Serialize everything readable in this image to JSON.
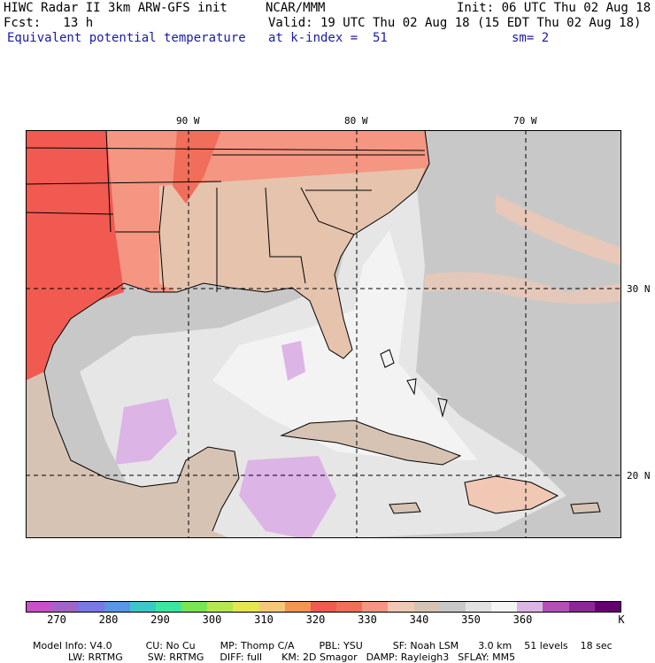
{
  "header": {
    "title": "HIWC Radar II 3km ARW-GFS init",
    "org": "NCAR/MMM",
    "init": "Init: 06 UTC Thu 02 Aug 18",
    "fcst": "Fcst:   13 h",
    "valid": "Valid: 19 UTC Thu 02 Aug 18 (15 EDT Thu 02 Aug 18)",
    "field": "Equivalent potential temperature",
    "level": "at k-index =  51",
    "smooth": "sm= 2"
  },
  "map": {
    "lon_labels": [
      "90 W",
      "80 W",
      "70 W"
    ],
    "lat_labels": [
      "30 N",
      "20 N"
    ]
  },
  "colorbar": {
    "colors": [
      "#c850c8",
      "#a064c8",
      "#7878e6",
      "#5a96e6",
      "#3cc8c8",
      "#3ce6a0",
      "#78e650",
      "#b4e650",
      "#e6e650",
      "#f5c878",
      "#f59650",
      "#f05a50",
      "#f06e5a",
      "#f59682",
      "#f0c8b4",
      "#d7c3b4",
      "#c8c8c8",
      "#e1e1e1",
      "#f5f5f5",
      "#dcb4e6",
      "#b450b4",
      "#8c2896",
      "#64006e"
    ],
    "labels": [
      "270",
      "280",
      "290",
      "300",
      "310",
      "320",
      "330",
      "340",
      "350",
      "360",
      "K"
    ]
  },
  "footer": {
    "line1": [
      "Model Info: V4.0",
      "CU: No Cu",
      "MP: Thomp C/A",
      "PBL: YSU",
      "SF: Noah LSM",
      "3.0 km",
      "51 levels",
      "18 sec"
    ],
    "line2": [
      "LW: RRTMG",
      "SW: RRTMG",
      "DIFF: full",
      "KM: 2D Smagor",
      "DAMP: Rayleigh3",
      "SFLAY: MM5"
    ]
  }
}
